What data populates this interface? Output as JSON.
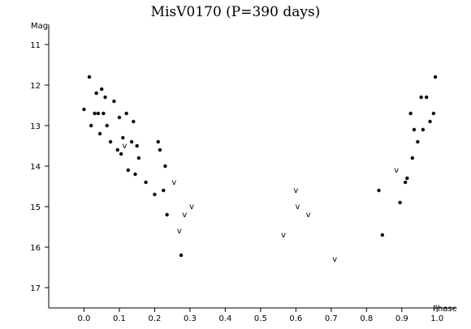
{
  "chart_data": {
    "type": "scatter",
    "title": "MisV0170 (P=390 days)",
    "xlabel": "Phase",
    "ylabel": "Mag",
    "xlim": [
      -0.1,
      1.05
    ],
    "ylim": [
      17.5,
      10.5
    ],
    "y_inverted": true,
    "x_ticks": [
      "0.0",
      "0.1",
      "0.2",
      "0.3",
      "0.4",
      "0.5",
      "0.6",
      "0.7",
      "0.8",
      "0.9",
      "1.0"
    ],
    "y_ticks": [
      "11",
      "12",
      "13",
      "14",
      "15",
      "16",
      "17"
    ],
    "grid": false,
    "limit_symbol": "v",
    "series": [
      {
        "marker": "dot",
        "x": [
          0.0,
          0.015,
          0.02,
          0.03,
          0.035,
          0.04,
          0.045,
          0.05,
          0.055,
          0.06,
          0.065,
          0.075,
          0.085,
          0.095,
          0.1,
          0.105,
          0.11,
          0.12,
          0.125,
          0.135,
          0.14,
          0.145,
          0.15,
          0.155,
          0.175,
          0.2,
          0.21,
          0.215,
          0.225,
          0.23,
          0.235,
          0.275,
          0.835,
          0.845,
          0.895,
          0.91,
          0.915,
          0.925,
          0.93,
          0.935,
          0.945,
          0.955,
          0.96,
          0.97,
          0.98,
          0.99,
          0.995
        ],
        "y": [
          12.6,
          11.8,
          13.0,
          12.7,
          12.2,
          12.7,
          13.2,
          12.1,
          12.7,
          12.3,
          13.0,
          13.4,
          12.4,
          13.6,
          12.8,
          13.7,
          13.3,
          12.7,
          14.1,
          13.4,
          12.9,
          14.2,
          13.5,
          13.8,
          14.4,
          14.7,
          13.4,
          13.6,
          14.6,
          14.0,
          15.2,
          16.2,
          14.6,
          15.7,
          14.9,
          14.4,
          14.3,
          12.7,
          13.8,
          13.1,
          13.4,
          12.3,
          13.1,
          12.3,
          12.9,
          12.7,
          11.8
        ]
      },
      {
        "marker": "v",
        "x": [
          0.115,
          0.255,
          0.27,
          0.285,
          0.305,
          0.565,
          0.6,
          0.605,
          0.635,
          0.71,
          0.885
        ],
        "y": [
          13.5,
          14.4,
          15.6,
          15.2,
          15.0,
          15.7,
          14.6,
          15.0,
          15.2,
          16.3,
          14.1
        ]
      }
    ]
  }
}
